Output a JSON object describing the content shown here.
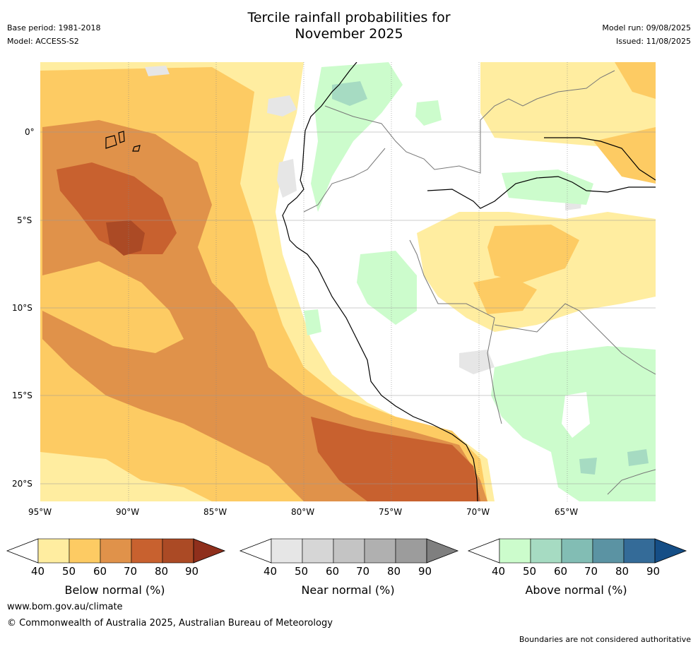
{
  "header": {
    "title_line1": "Tercile rainfall probabilities for",
    "title_line2": "November 2025",
    "base_period": "Base period: 1981-2018",
    "model": "Model: ACCESS-S2",
    "model_run": "Model run: 09/08/2025",
    "issued": "Issued: 11/08/2025"
  },
  "map": {
    "lon_labels": [
      "95°W",
      "90°W",
      "85°W",
      "80°W",
      "75°W",
      "70°W",
      "65°W"
    ],
    "lat_labels": [
      "0°",
      "5°S",
      "10°S",
      "15°S",
      "20°S"
    ]
  },
  "colorbars": [
    {
      "label": "Below normal (%)",
      "ticks": [
        "40",
        "50",
        "60",
        "70",
        "80",
        "90"
      ],
      "colors": [
        "#ffeda0",
        "#fdcb63",
        "#e0924a",
        "#c8612f",
        "#ab4a25",
        "#8f2f1c"
      ]
    },
    {
      "label": "Near normal (%)",
      "ticks": [
        "40",
        "50",
        "60",
        "70",
        "80",
        "90"
      ],
      "colors": [
        "#e6e6e6",
        "#d6d6d6",
        "#c4c4c4",
        "#b0b0b0",
        "#9c9c9c",
        "#7f7f7f"
      ]
    },
    {
      "label": "Above normal (%)",
      "ticks": [
        "40",
        "50",
        "60",
        "70",
        "80",
        "90"
      ],
      "colors": [
        "#ccfccc",
        "#a6dbc2",
        "#82bdb4",
        "#5b93a3",
        "#346b98",
        "#154e86"
      ]
    }
  ],
  "footer": {
    "website": "www.bom.gov.au/climate",
    "copyright": "© Commonwealth of Australia 2025, Australian Bureau of Meteorology",
    "disclaimer": "Boundaries are not considered authoritative"
  }
}
